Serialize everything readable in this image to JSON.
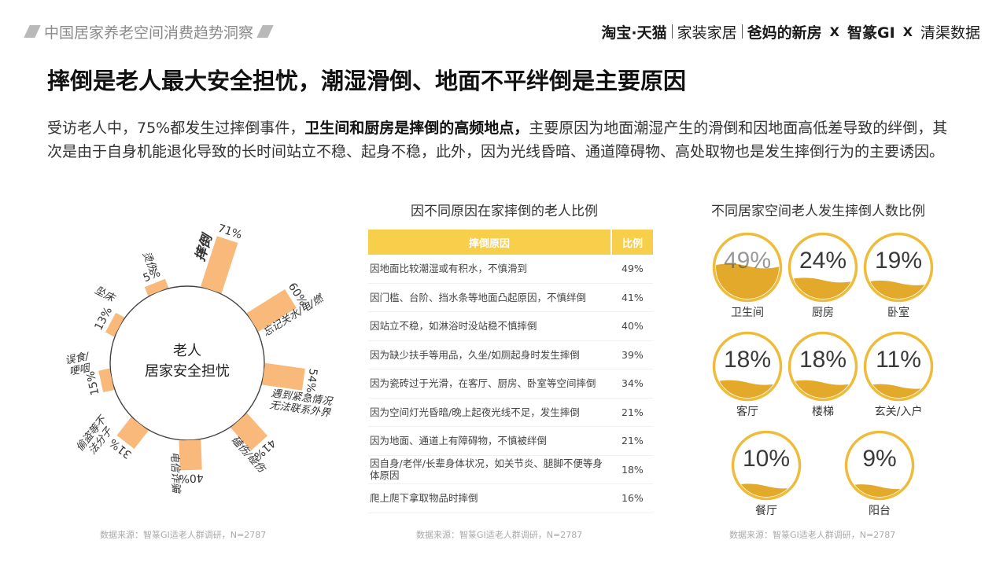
{
  "header": {
    "report_title": "中国居家养老空间消费趋势洞察",
    "partners": {
      "taobao": "淘宝·天猫",
      "home": "家装家居",
      "parents": "爸妈的新房",
      "cross": "X",
      "gi": "智篆GI",
      "qingqu": "清渠数据"
    }
  },
  "headline": "摔倒是老人最大安全担忧，潮湿滑倒、地面不平绊倒是主要原因",
  "intro": {
    "part1": "受访老人中，75%都发生过摔倒事件，",
    "emphasis": "卫生间和厨房是摔倒的高频地点，",
    "part2": "主要原因为地面潮湿产生的滑倒和因地面高低差导致的绊倒，其次是由于自身机能退化导致的长时间站立不稳、起身不稳，此外，因为光线昏暗、通道障碍物、高处取物也是发生摔倒行为的主要诱因。"
  },
  "colors": {
    "accent": "#f8cf4a",
    "bar": "#f8b97a",
    "ring": "#eebc3a",
    "wave": "#e3a92a"
  },
  "chart_data": [
    {
      "type": "bar",
      "layout": "radial",
      "center_title": "老人",
      "center_subtitle": "居家安全担忧",
      "categories": [
        "摔倒",
        "忘记关水/电/燃",
        "遇到紧急情况无法联系外界",
        "磕伤/碰伤",
        "电信诈骗",
        "偷盗等不法分子",
        "误食/哽咽",
        "坠床",
        "烫伤"
      ],
      "values": [
        71,
        60,
        54,
        41,
        40,
        31,
        15,
        13,
        5
      ],
      "unit": "%"
    },
    {
      "type": "table",
      "title": "因不同原因在家摔倒的老人比例",
      "columns": [
        "摔倒原因",
        "比例"
      ],
      "rows": [
        [
          "因地面比较潮湿或有积水，不慎滑到",
          "49%"
        ],
        [
          "因门槛、台阶、挡水条等地面凸起原因，不慎绊倒",
          "41%"
        ],
        [
          "因站立不稳，如淋浴时没站稳不慎摔倒",
          "40%"
        ],
        [
          "因为缺少扶手等用品，久坐/如厕起身时发生摔倒",
          "39%"
        ],
        [
          "因为瓷砖过于光滑，在客厅、厨房、卧室等空间摔倒",
          "34%"
        ],
        [
          "因为空间灯光昏暗/晚上起夜光线不足，发生摔倒",
          "21%"
        ],
        [
          "因为地面、通道上有障碍物，不慎被绊倒",
          "21%"
        ],
        [
          "因自身/老伴/长辈身体状况，如关节炎、腿脚不便等身体原因",
          "18%"
        ],
        [
          "爬上爬下拿取物品时摔倒",
          "16%"
        ]
      ]
    },
    {
      "type": "bar",
      "layout": "fill-bubbles",
      "title": "不同居家空间老人发生摔倒人数比例",
      "categories": [
        "卫生间",
        "厨房",
        "卧室",
        "客厅",
        "楼梯",
        "玄关/入户",
        "餐厅",
        "阳台"
      ],
      "values": [
        49,
        24,
        19,
        18,
        18,
        11,
        10,
        9
      ],
      "labels": [
        "49%",
        "24%",
        "19%",
        "18%",
        "18%",
        "11%",
        "10%",
        "9%"
      ],
      "unit": "%"
    }
  ],
  "sources": {
    "left": "数据来源：智篆GI适老人群调研，N=2787",
    "middle": "数据来源：智篆GI适老人群调研，N=2787",
    "right": "数据来源：智篆GI适老人群调研，N=2787"
  }
}
